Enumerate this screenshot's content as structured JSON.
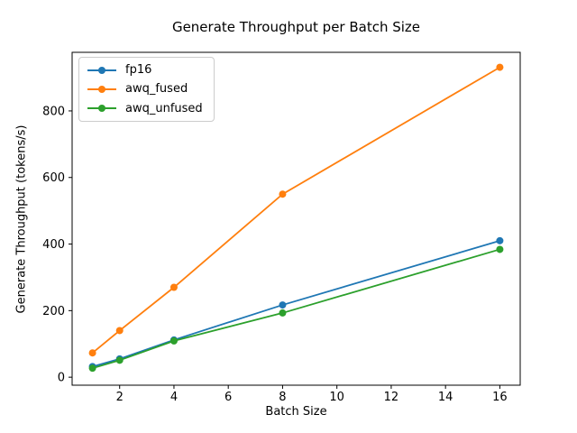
{
  "chart_data": {
    "type": "line",
    "title": "Generate Throughput per Batch Size",
    "xlabel": "Batch Size",
    "ylabel": "Generate Throughput (tokens/s)",
    "x": [
      1,
      2,
      4,
      8,
      16
    ],
    "series": [
      {
        "name": "fp16",
        "color": "#1f77b4",
        "values": [
          32,
          55,
          112,
          217,
          410
        ]
      },
      {
        "name": "awq_fused",
        "color": "#ff7f0e",
        "values": [
          73,
          140,
          270,
          550,
          931
        ]
      },
      {
        "name": "awq_unfused",
        "color": "#2ca02c",
        "values": [
          27,
          51,
          109,
          193,
          384
        ]
      }
    ],
    "xlim": [
      0.25,
      16.75
    ],
    "ylim": [
      -24,
      976
    ],
    "xticks": [
      2,
      4,
      6,
      8,
      10,
      12,
      14,
      16
    ],
    "yticks": [
      0,
      200,
      400,
      600,
      800
    ],
    "grid": false,
    "legend_position": "upper-left",
    "marker": "circle",
    "spine_color": "#000000"
  }
}
